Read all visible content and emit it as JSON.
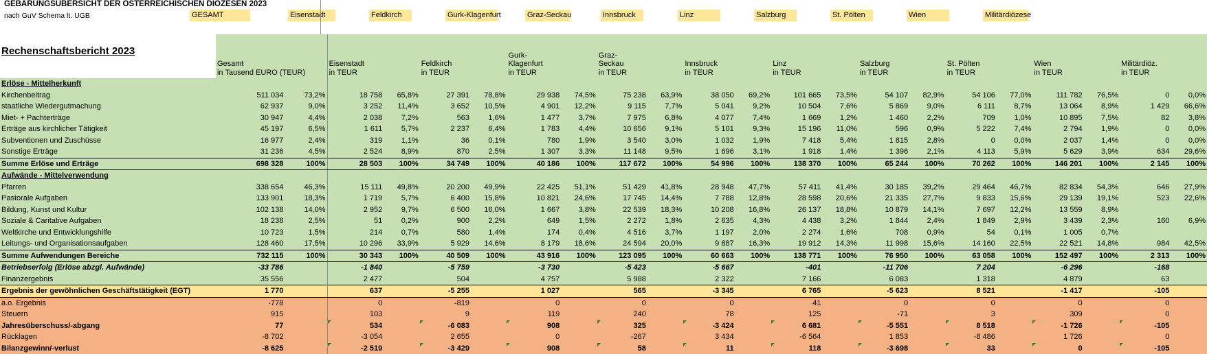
{
  "doc": {
    "title": "GEBARUNGSÜBERSICHT DER ÖSTERREICHISCHEN DIÖZESEN 2023",
    "subtitle": "nach GuV Schema lt. UGB",
    "report_title": "Rechenschaftsbericht 2023"
  },
  "top_tags": [
    "GESAMT",
    "Eisenstadt",
    "Feldkirch",
    "Gurk-Klagenfurt",
    "Graz-Seckau",
    "Innsbruck",
    "Linz",
    "Salzburg",
    "St. Pölten",
    "Wien",
    "Militärdiözese"
  ],
  "colors": {
    "green": "#c6e0b4",
    "yellow": "#ffe699",
    "orange": "#f4b183"
  },
  "columns": [
    {
      "name_lines": [
        "Gesamt"
      ],
      "unit": "in Tausend EURO (TEUR)"
    },
    {
      "name_lines": [
        "Eisenstadt"
      ],
      "unit": "in TEUR"
    },
    {
      "name_lines": [
        "Feldkirch"
      ],
      "unit": "in TEUR"
    },
    {
      "name_lines": [
        "Gurk-",
        "Klagenfurt"
      ],
      "unit": "in TEUR"
    },
    {
      "name_lines": [
        "Graz-",
        "Seckau"
      ],
      "unit": "in TEUR"
    },
    {
      "name_lines": [
        "Innsbruck"
      ],
      "unit": "in TEUR"
    },
    {
      "name_lines": [
        "Linz"
      ],
      "unit": "in TEUR"
    },
    {
      "name_lines": [
        "Salzburg"
      ],
      "unit": "in TEUR"
    },
    {
      "name_lines": [
        "St. Pölten"
      ],
      "unit": "in TEUR"
    },
    {
      "name_lines": [
        "Wien"
      ],
      "unit": "in TEUR"
    },
    {
      "name_lines": [
        "Militärdiöz."
      ],
      "unit": "in TEUR"
    }
  ],
  "rows": [
    {
      "label": "Erlöse - Mittelherkunft",
      "kind": "section",
      "bg": "g"
    },
    {
      "label": "Kirchenbeitrag",
      "bg": "g",
      "cells": [
        [
          "511 034",
          "73,2%"
        ],
        [
          "18 758",
          "65,8%"
        ],
        [
          "27 391",
          "78,8%"
        ],
        [
          "29 938",
          "74,5%"
        ],
        [
          "75 238",
          "63,9%"
        ],
        [
          "38 050",
          "69,2%"
        ],
        [
          "101 665",
          "73,5%"
        ],
        [
          "54 107",
          "82,9%"
        ],
        [
          "54 106",
          "77,0%"
        ],
        [
          "111 782",
          "76,5%"
        ],
        [
          "0",
          "0,0%"
        ]
      ]
    },
    {
      "label": "staatliche Wiedergutmachung",
      "bg": "g",
      "cells": [
        [
          "62 937",
          "9,0%"
        ],
        [
          "3 252",
          "11,4%"
        ],
        [
          "3 652",
          "10,5%"
        ],
        [
          "4 901",
          "12,2%"
        ],
        [
          "9 115",
          "7,7%"
        ],
        [
          "5 041",
          "9,2%"
        ],
        [
          "10 504",
          "7,6%"
        ],
        [
          "5 869",
          "9,0%"
        ],
        [
          "6 111",
          "8,7%"
        ],
        [
          "13 064",
          "8,9%"
        ],
        [
          "1 429",
          "66,6%"
        ]
      ]
    },
    {
      "label": "Miet- + Pachterträge",
      "bg": "g",
      "cells": [
        [
          "30 947",
          "4,4%"
        ],
        [
          "2 038",
          "7,2%"
        ],
        [
          "563",
          "1,6%"
        ],
        [
          "1 477",
          "3,7%"
        ],
        [
          "7 975",
          "6,8%"
        ],
        [
          "4 077",
          "7,4%"
        ],
        [
          "1 669",
          "1,2%"
        ],
        [
          "1 460",
          "2,2%"
        ],
        [
          "709",
          "1,0%"
        ],
        [
          "10 895",
          "7,5%"
        ],
        [
          "82",
          "3,8%"
        ]
      ]
    },
    {
      "label": "Erträge aus kirchlicher Tätigkeit",
      "bg": "g",
      "cells": [
        [
          "45 197",
          "6,5%"
        ],
        [
          "1 611",
          "5,7%"
        ],
        [
          "2 237",
          "6,4%"
        ],
        [
          "1 783",
          "4,4%"
        ],
        [
          "10 656",
          "9,1%"
        ],
        [
          "5 101",
          "9,3%"
        ],
        [
          "15 196",
          "11,0%"
        ],
        [
          "596",
          "0,9%"
        ],
        [
          "5 222",
          "7,4%"
        ],
        [
          "2 794",
          "1,9%"
        ],
        [
          "0",
          "0,0%"
        ]
      ]
    },
    {
      "label": "Subventionen und Zuschüsse",
      "bg": "g",
      "cells": [
        [
          "16 977",
          "2,4%"
        ],
        [
          "319",
          "1,1%"
        ],
        [
          "36",
          "0,1%"
        ],
        [
          "780",
          "1,9%"
        ],
        [
          "3 540",
          "3,0%"
        ],
        [
          "1 032",
          "1,9%"
        ],
        [
          "7 418",
          "5,4%"
        ],
        [
          "1 815",
          "2,8%"
        ],
        [
          "0",
          "0,0%"
        ],
        [
          "2 037",
          "1,4%"
        ],
        [
          "0",
          "0,0%"
        ]
      ]
    },
    {
      "label": "Sonstige Erträge",
      "bg": "g",
      "cells": [
        [
          "31 236",
          "4,5%"
        ],
        [
          "2 524",
          "8,9%"
        ],
        [
          "870",
          "2,5%"
        ],
        [
          "1 307",
          "3,3%"
        ],
        [
          "11 148",
          "9,5%"
        ],
        [
          "1 696",
          "3,1%"
        ],
        [
          "1 918",
          "1,4%"
        ],
        [
          "1 396",
          "2,1%"
        ],
        [
          "4 113",
          "5,9%"
        ],
        [
          "5 629",
          "3,9%"
        ],
        [
          "634",
          "29,6%"
        ]
      ]
    },
    {
      "label": "Summe Erlöse und Erträge",
      "bg": "g",
      "kind": "total",
      "cells": [
        [
          "698 328",
          "100%"
        ],
        [
          "28 503",
          "100%"
        ],
        [
          "34 749",
          "100%"
        ],
        [
          "40 186",
          "100%"
        ],
        [
          "117 672",
          "100%"
        ],
        [
          "54 996",
          "100%"
        ],
        [
          "138 370",
          "100%"
        ],
        [
          "65 244",
          "100%"
        ],
        [
          "70 262",
          "100%"
        ],
        [
          "146 201",
          "100%"
        ],
        [
          "2 145",
          "100%"
        ]
      ]
    },
    {
      "label": "Aufwände - Mittelverwendung",
      "kind": "section",
      "bg": "g"
    },
    {
      "label": "Pfarren",
      "bg": "g",
      "cells": [
        [
          "338 654",
          "46,3%"
        ],
        [
          "15 111",
          "49,8%"
        ],
        [
          "20 200",
          "49,9%"
        ],
        [
          "22 425",
          "51,1%"
        ],
        [
          "51 429",
          "41,8%"
        ],
        [
          "28 948",
          "47,7%"
        ],
        [
          "57 411",
          "41,4%"
        ],
        [
          "30 185",
          "39,2%"
        ],
        [
          "29 464",
          "46,7%"
        ],
        [
          "82 834",
          "54,3%"
        ],
        [
          "646",
          "27,9%"
        ]
      ]
    },
    {
      "label": "Pastorale Aufgaben",
      "bg": "g",
      "cells": [
        [
          "133 901",
          "18,3%"
        ],
        [
          "1 719",
          "5,7%"
        ],
        [
          "6 400",
          "15,8%"
        ],
        [
          "10 821",
          "24,6%"
        ],
        [
          "17 745",
          "14,4%"
        ],
        [
          "7 788",
          "12,8%"
        ],
        [
          "28 598",
          "20,6%"
        ],
        [
          "21 335",
          "27,7%"
        ],
        [
          "9 833",
          "15,6%"
        ],
        [
          "29 139",
          "19,1%"
        ],
        [
          "523",
          "22,6%"
        ]
      ]
    },
    {
      "label": "Bildung, Kunst und Kultur",
      "bg": "g",
      "cells": [
        [
          "102 138",
          "14,0%"
        ],
        [
          "2 952",
          "9,7%"
        ],
        [
          "6 500",
          "16,0%"
        ],
        [
          "1 667",
          "3,8%"
        ],
        [
          "22 539",
          "18,3%"
        ],
        [
          "10 208",
          "16,8%"
        ],
        [
          "26 137",
          "18,8%"
        ],
        [
          "10 879",
          "14,1%"
        ],
        [
          "7 697",
          "12,2%"
        ],
        [
          "13 559",
          "8,9%"
        ],
        [
          "",
          ""
        ]
      ]
    },
    {
      "label": "Soziale & Caritative Aufgaben",
      "bg": "g",
      "cells": [
        [
          "18 238",
          "2,5%"
        ],
        [
          "51",
          "0,2%"
        ],
        [
          "900",
          "2,2%"
        ],
        [
          "649",
          "1,5%"
        ],
        [
          "2 272",
          "1,8%"
        ],
        [
          "2 635",
          "4,3%"
        ],
        [
          "4 438",
          "3,2%"
        ],
        [
          "1 844",
          "2,4%"
        ],
        [
          "1 849",
          "2,9%"
        ],
        [
          "3 439",
          "2,3%"
        ],
        [
          "160",
          "6,9%"
        ]
      ]
    },
    {
      "label": "Weltkirche und Entwicklungshilfe",
      "bg": "g",
      "cells": [
        [
          "10 723",
          "1,5%"
        ],
        [
          "214",
          "0,7%"
        ],
        [
          "580",
          "1,4%"
        ],
        [
          "174",
          "0,4%"
        ],
        [
          "4 516",
          "3,7%"
        ],
        [
          "1 197",
          "2,0%"
        ],
        [
          "2 274",
          "1,6%"
        ],
        [
          "708",
          "0,9%"
        ],
        [
          "54",
          "0,1%"
        ],
        [
          "1 005",
          "0,7%"
        ],
        [
          "",
          ""
        ]
      ]
    },
    {
      "label": "Leitungs- und Organisationsaufgaben",
      "bg": "g",
      "cells": [
        [
          "128 460",
          "17,5%"
        ],
        [
          "10 296",
          "33,9%"
        ],
        [
          "5 929",
          "14,6%"
        ],
        [
          "8 179",
          "18,6%"
        ],
        [
          "24 594",
          "20,0%"
        ],
        [
          "9 887",
          "16,3%"
        ],
        [
          "19 912",
          "14,3%"
        ],
        [
          "11 998",
          "15,6%"
        ],
        [
          "14 160",
          "22,5%"
        ],
        [
          "22 521",
          "14,8%"
        ],
        [
          "984",
          "42,5%"
        ]
      ]
    },
    {
      "label": "Summe Aufwendungen Bereiche",
      "bg": "g",
      "kind": "total",
      "cells": [
        [
          "732 115",
          "100%"
        ],
        [
          "30 343",
          "100%"
        ],
        [
          "40 509",
          "100%"
        ],
        [
          "43 916",
          "100%"
        ],
        [
          "123 095",
          "100%"
        ],
        [
          "60 663",
          "100%"
        ],
        [
          "138 771",
          "100%"
        ],
        [
          "76 950",
          "100%"
        ],
        [
          "63 058",
          "100%"
        ],
        [
          "152 497",
          "100%"
        ],
        [
          "2 313",
          "100%"
        ]
      ]
    },
    {
      "label": "Betriebserfolg (Erlöse abzgl. Aufwände)",
      "bg": "g",
      "kind": "italic",
      "cells": [
        [
          "-33 786",
          ""
        ],
        [
          "-1 840",
          ""
        ],
        [
          "-5 759",
          ""
        ],
        [
          "-3 730",
          ""
        ],
        [
          "-5 423",
          ""
        ],
        [
          "-5 667",
          ""
        ],
        [
          "-401",
          ""
        ],
        [
          "-11 706",
          ""
        ],
        [
          "7 204",
          ""
        ],
        [
          "-6 296",
          ""
        ],
        [
          "-168",
          ""
        ]
      ]
    },
    {
      "label": "Finanzergebnis",
      "bg": "g",
      "cells": [
        [
          "35 556",
          ""
        ],
        [
          "2 477",
          ""
        ],
        [
          "504",
          ""
        ],
        [
          "4 757",
          ""
        ],
        [
          "5 988",
          ""
        ],
        [
          "2 322",
          ""
        ],
        [
          "7 166",
          ""
        ],
        [
          "6 083",
          ""
        ],
        [
          "1 318",
          ""
        ],
        [
          "4 879",
          ""
        ],
        [
          "63",
          ""
        ]
      ]
    },
    {
      "label": "Ergebnis der gewöhnlichen Geschäftstätigkeit (EGT)",
      "bg": "y",
      "kind": "egt",
      "cells": [
        [
          "1 770",
          ""
        ],
        [
          "637",
          ""
        ],
        [
          "-5 255",
          ""
        ],
        [
          "1 027",
          ""
        ],
        [
          "565",
          ""
        ],
        [
          "-3 345",
          ""
        ],
        [
          "6 765",
          ""
        ],
        [
          "-5 623",
          ""
        ],
        [
          "8 521",
          ""
        ],
        [
          "-1 417",
          ""
        ],
        [
          "-105",
          ""
        ]
      ]
    },
    {
      "label": "a.o. Ergebnis",
      "bg": "o",
      "cells": [
        [
          "-778",
          ""
        ],
        [
          "0",
          ""
        ],
        [
          "-819",
          ""
        ],
        [
          "0",
          ""
        ],
        [
          "0",
          ""
        ],
        [
          "0",
          ""
        ],
        [
          "41",
          ""
        ],
        [
          "0",
          ""
        ],
        [
          "0",
          ""
        ],
        [
          "0",
          ""
        ],
        [
          "0",
          ""
        ]
      ]
    },
    {
      "label": "Steuern",
      "bg": "o",
      "cells": [
        [
          "915",
          ""
        ],
        [
          "103",
          ""
        ],
        [
          "9",
          ""
        ],
        [
          "119",
          ""
        ],
        [
          "240",
          ""
        ],
        [
          "78",
          ""
        ],
        [
          "125",
          ""
        ],
        [
          "-71",
          ""
        ],
        [
          "3",
          ""
        ],
        [
          "309",
          ""
        ],
        [
          "0",
          ""
        ]
      ]
    },
    {
      "label": "Jahresüberschuss/-abgang",
      "bg": "o",
      "kind": "bold",
      "cells": [
        [
          "77",
          ""
        ],
        [
          "534",
          ""
        ],
        [
          "-6 083",
          ""
        ],
        [
          "908",
          ""
        ],
        [
          "325",
          ""
        ],
        [
          "-3 424",
          ""
        ],
        [
          "6 681",
          ""
        ],
        [
          "-5 551",
          ""
        ],
        [
          "8 518",
          ""
        ],
        [
          "-1 726",
          ""
        ],
        [
          "-105",
          ""
        ]
      ]
    },
    {
      "label": "Rücklagen",
      "bg": "o",
      "cells": [
        [
          "-8 702",
          ""
        ],
        [
          "-3 054",
          ""
        ],
        [
          "2 655",
          ""
        ],
        [
          "0",
          ""
        ],
        [
          "-267",
          ""
        ],
        [
          "3 434",
          ""
        ],
        [
          "-6 564",
          ""
        ],
        [
          "1 853",
          ""
        ],
        [
          "-8 486",
          ""
        ],
        [
          "1 726",
          ""
        ],
        [
          "0",
          ""
        ]
      ]
    },
    {
      "label": "Bilanzgewinn/-verlust",
      "bg": "o",
      "kind": "bold",
      "cells": [
        [
          "-8 625",
          ""
        ],
        [
          "-2 519",
          ""
        ],
        [
          "-3 429",
          ""
        ],
        [
          "908",
          ""
        ],
        [
          "58",
          ""
        ],
        [
          "11",
          ""
        ],
        [
          "118",
          ""
        ],
        [
          "-3 698",
          ""
        ],
        [
          "33",
          ""
        ],
        [
          "0",
          ""
        ],
        [
          "-105",
          ""
        ]
      ]
    }
  ]
}
